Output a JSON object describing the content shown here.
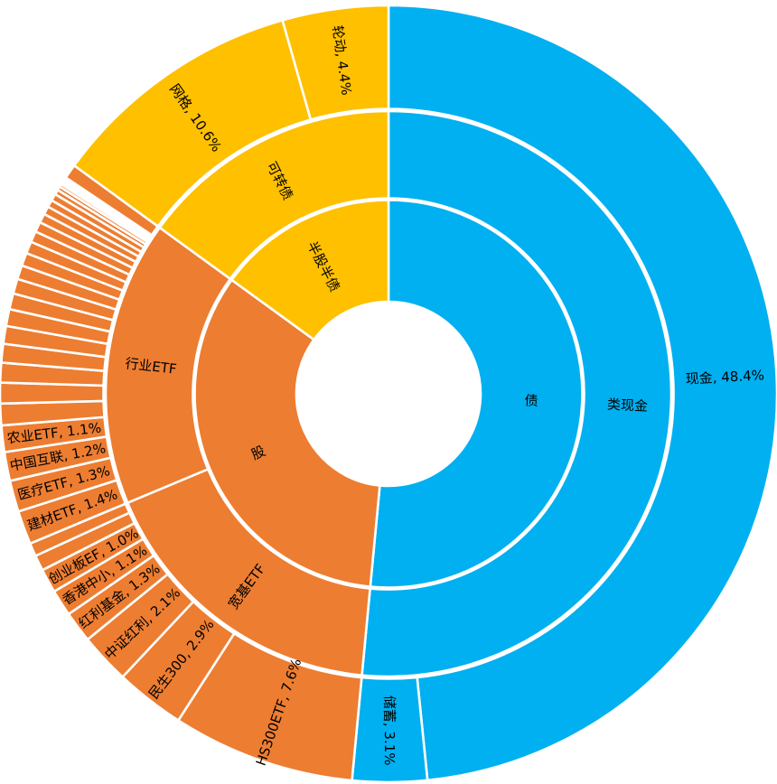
{
  "chart_data": {
    "type": "sunburst",
    "unit": "%",
    "direction": "clockwise",
    "start_angle_deg": 0,
    "levels": 3,
    "legend": "none",
    "background_color": "#FFFFFF",
    "separator_color": "#FFFFFF",
    "label_color": "#000000",
    "palette": {
      "bond_blue": "#00B0F0",
      "stock_orange": "#ED7D31",
      "hybrid_yellow": "#FFC000"
    },
    "tree": [
      {
        "id": "bond",
        "name": "债",
        "label": "债",
        "color": "#00B0F0",
        "children": [
          {
            "id": "cash-like",
            "name": "类现金",
            "label": "类现金",
            "children": [
              {
                "id": "cash",
                "name": "现金",
                "label": "现金, 48.4%",
                "value": 48.4
              },
              {
                "id": "savings",
                "name": "储蓄",
                "label": "储蓄, 3.1%",
                "value": 3.1
              }
            ]
          }
        ]
      },
      {
        "id": "stock",
        "name": "股",
        "label": "股",
        "color": "#ED7D31",
        "children": [
          {
            "id": "broad-etf",
            "name": "宽基ETF",
            "label": "宽基ETF",
            "children": [
              {
                "id": "hs300etf",
                "name": "HS300ETF",
                "label": "HS300ETF, 7.6%",
                "value": 7.6
              },
              {
                "id": "minsheng300",
                "name": "民生300",
                "label": "民生300, 2.9%",
                "value": 2.9
              },
              {
                "id": "zhongzheng-hongli",
                "name": "中证红利",
                "label": "中证红利, 2.1%",
                "value": 2.1
              },
              {
                "id": "hongli-fund",
                "name": "红利基金",
                "label": "红利基金, 1.3%",
                "value": 1.3
              },
              {
                "id": "hongkong-zhongxiao",
                "name": "香港中小",
                "label": "香港中小, 1.1%",
                "value": 1.1
              },
              {
                "id": "chuangyeban-ef",
                "name": "创业板EF",
                "label": "创业板EF, 1.0%",
                "value": 1.0
              },
              {
                "id": "broad-etf-small-1",
                "label": null,
                "value": 0.65
              },
              {
                "id": "broad-etf-small-2",
                "label": null,
                "value": 0.55
              }
            ]
          },
          {
            "id": "sector-etf",
            "name": "行业ETF",
            "label": "行业ETF",
            "children": [
              {
                "id": "jiancai-etf",
                "name": "建材ETF",
                "label": "建材ETF, 1.4%",
                "value": 1.4
              },
              {
                "id": "yiliao-etf",
                "name": "医疗ETF",
                "label": "医疗ETF, 1.3%",
                "value": 1.3
              },
              {
                "id": "zhongguo-hulian",
                "name": "中国互联",
                "label": "中国互联, 1.2%",
                "value": 1.2
              },
              {
                "id": "nongye-etf",
                "name": "农业ETF",
                "label": "农业ETF, 1.1%",
                "value": 1.1
              },
              {
                "id": "sector-etf-small-1",
                "label": null,
                "value": 0.9
              },
              {
                "id": "sector-etf-small-2",
                "label": null,
                "value": 0.86
              },
              {
                "id": "sector-etf-small-3",
                "label": null,
                "value": 0.82
              },
              {
                "id": "sector-etf-small-4",
                "label": null,
                "value": 0.78
              },
              {
                "id": "sector-etf-small-5",
                "label": null,
                "value": 0.74
              },
              {
                "id": "sector-etf-small-6",
                "label": null,
                "value": 0.7
              },
              {
                "id": "sector-etf-small-7",
                "label": null,
                "value": 0.66
              },
              {
                "id": "sector-etf-small-8",
                "label": null,
                "value": 0.62
              },
              {
                "id": "sector-etf-small-9",
                "label": null,
                "value": 0.58
              },
              {
                "id": "sector-etf-small-10",
                "label": null,
                "value": 0.54
              },
              {
                "id": "sector-etf-small-11",
                "label": null,
                "value": 0.5
              },
              {
                "id": "sector-etf-small-12",
                "label": null,
                "value": 0.46
              },
              {
                "id": "sector-etf-small-13",
                "label": null,
                "value": 0.42
              },
              {
                "id": "sector-etf-small-14",
                "label": null,
                "value": 0.38
              },
              {
                "id": "sector-etf-small-15",
                "label": null,
                "value": 0.34
              },
              {
                "id": "sector-etf-small-16",
                "label": null,
                "value": 0.3
              },
              {
                "id": "sector-etf-small-17",
                "label": null,
                "value": 0.29
              },
              {
                "id": "sector-etf-small-18",
                "label": null,
                "value": 0.2
              },
              {
                "id": "sector-etf-small-19",
                "label": null,
                "value": 0.16
              },
              {
                "id": "sector-etf-small-20",
                "label": null,
                "value": 0.12
              },
              {
                "id": "sector-etf-small-21",
                "label": null,
                "value": 0.09
              },
              {
                "id": "sector-etf-small-22",
                "label": null,
                "value": 0.07
              },
              {
                "id": "sector-etf-small-23",
                "label": null,
                "value": 0.05
              },
              {
                "id": "sector-etf-small-24",
                "label": null,
                "value": 0.04
              },
              {
                "id": "sector-etf-small-25",
                "label": null,
                "value": 0.03
              },
              {
                "id": "sector-etf-small-26",
                "label": null,
                "value": 0.02
              },
              {
                "id": "sector-etf-small-27",
                "label": null,
                "value": 0.015
              },
              {
                "id": "sector-etf-small-28",
                "label": null,
                "value": 0.015
              },
              {
                "id": "sector-etf-small-tail",
                "label": null,
                "value": 0.6
              }
            ]
          }
        ]
      },
      {
        "id": "half-stock-half-bond",
        "name": "半股半债",
        "label": "半股半债",
        "color": "#FFC000",
        "children": [
          {
            "id": "convertible-bond",
            "name": "可转债",
            "label": "可转债",
            "children": [
              {
                "id": "wangge",
                "name": "网格",
                "label": "网格, 10.6%",
                "value": 10.6
              },
              {
                "id": "lundong",
                "name": "轮动",
                "label": "轮动, 4.4%",
                "value": 4.4
              }
            ]
          }
        ]
      }
    ]
  }
}
